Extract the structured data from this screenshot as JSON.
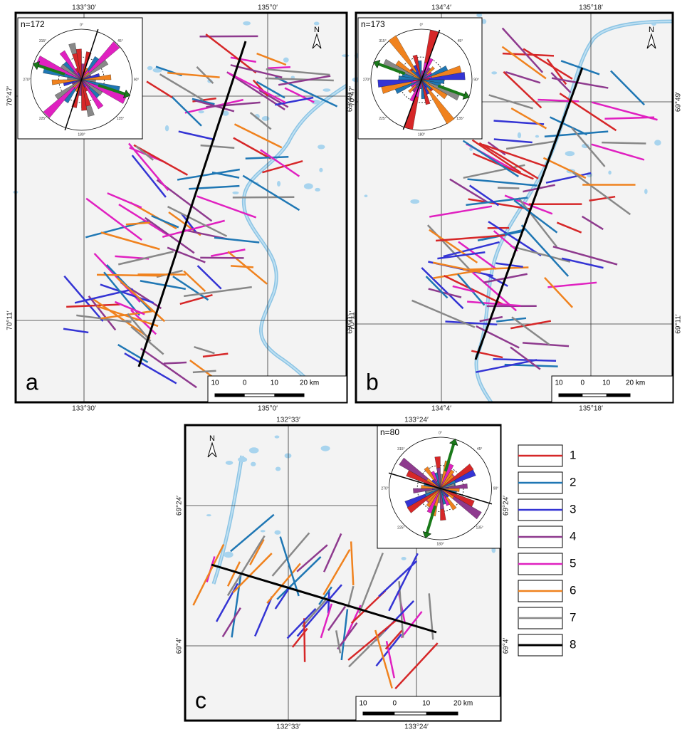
{
  "panels": [
    {
      "label": "a",
      "count_label": "n=172",
      "top_labels": [
        "133°30′",
        "135°0′"
      ],
      "bottom_labels": [
        "133°30′",
        "135°0′"
      ],
      "left_labels": [
        "70°47′",
        "70°11′"
      ],
      "right_labels": [
        "70°47′",
        "70°11′"
      ]
    },
    {
      "label": "b",
      "count_label": "n=173",
      "top_labels": [
        "134°4′",
        "135°18′"
      ],
      "bottom_labels": [
        "134°4′",
        "135°18′"
      ],
      "left_labels": [
        "69°49′",
        "69°11′"
      ],
      "right_labels": [
        "69°49′",
        "69°11′"
      ]
    },
    {
      "label": "c",
      "count_label": "n=80",
      "top_labels": [
        "132°33′",
        "133°24′"
      ],
      "bottom_labels": [
        "132°33′",
        "133°24′"
      ],
      "left_labels": [
        "69°24′",
        "69°4′"
      ],
      "right_labels": [
        "69°24′",
        "69°4′"
      ]
    }
  ],
  "rose_labels": [
    "0°",
    "45°",
    "90°",
    "135°",
    "180°",
    "225°",
    "270°",
    "315°"
  ],
  "north": "N",
  "scale_labels": [
    "10",
    "0",
    "10",
    "20 km"
  ],
  "legend": [
    {
      "label": "1",
      "color": "#d62728"
    },
    {
      "label": "2",
      "color": "#1f77b4"
    },
    {
      "label": "3",
      "color": "#3434d4"
    },
    {
      "label": "4",
      "color": "#8e3a8e"
    },
    {
      "label": "5",
      "color": "#e020c0"
    },
    {
      "label": "6",
      "color": "#f0821e"
    },
    {
      "label": "7",
      "color": "#888888"
    },
    {
      "label": "8",
      "color": "#000000"
    }
  ]
}
